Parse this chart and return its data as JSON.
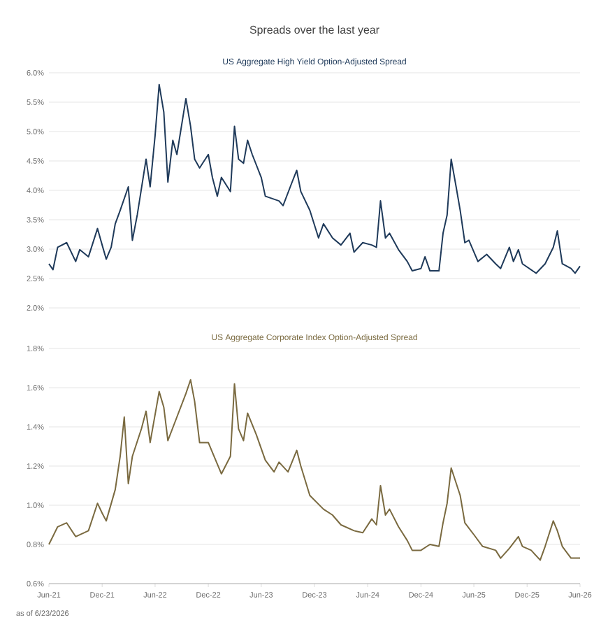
{
  "chart_data": [
    {
      "type": "line",
      "title": "Spreads over the last year",
      "subtitle": "US Aggregate High Yield Option-Adjusted Spread",
      "color": "#1f3a5a",
      "grid": "y",
      "tick_labels": "y",
      "x": [
        "2021-06-01",
        "2021-06-15",
        "2021-07-01",
        "2021-08-01",
        "2021-09-01",
        "2021-09-15",
        "2021-10-15",
        "2021-11-15",
        "2021-12-01",
        "2021-12-15",
        "2022-01-01",
        "2022-01-15",
        "2022-02-01",
        "2022-03-01",
        "2022-03-15",
        "2022-04-01",
        "2022-05-01",
        "2022-05-15",
        "2022-06-01",
        "2022-06-15",
        "2022-07-01",
        "2022-07-15",
        "2022-08-01",
        "2022-08-15",
        "2022-09-15",
        "2022-10-01",
        "2022-10-15",
        "2022-11-01",
        "2022-12-01",
        "2022-12-15",
        "2023-01-01",
        "2023-01-15",
        "2023-02-15",
        "2023-03-01",
        "2023-03-15",
        "2023-04-01",
        "2023-04-15",
        "2023-05-01",
        "2023-06-01",
        "2023-06-15",
        "2023-08-01",
        "2023-08-15",
        "2023-09-15",
        "2023-10-01",
        "2023-10-15",
        "2023-11-15",
        "2023-12-15",
        "2024-01-01",
        "2024-02-01",
        "2024-03-01",
        "2024-04-01",
        "2024-04-15",
        "2024-05-15",
        "2024-06-15",
        "2024-07-01",
        "2024-07-15",
        "2024-08-01",
        "2024-08-15",
        "2024-09-15",
        "2024-10-15",
        "2024-11-01",
        "2024-12-01",
        "2024-12-15",
        "2025-01-01",
        "2025-02-01",
        "2025-02-15",
        "2025-03-01",
        "2025-03-15",
        "2025-04-01",
        "2025-04-15",
        "2025-05-01",
        "2025-05-15",
        "2025-06-15",
        "2025-07-15",
        "2025-08-15",
        "2025-09-01",
        "2025-10-01",
        "2025-10-15",
        "2025-11-01",
        "2025-11-15",
        "2026-01-01",
        "2026-02-01",
        "2026-03-01",
        "2026-03-15",
        "2026-04-01",
        "2026-05-01",
        "2026-05-15",
        "2026-06-01"
      ],
      "values": [
        2.75,
        2.65,
        3.03,
        3.11,
        2.79,
        2.99,
        2.87,
        3.35,
        3.07,
        2.83,
        3.03,
        3.43,
        3.66,
        4.06,
        3.15,
        3.59,
        4.53,
        4.06,
        4.93,
        5.8,
        5.33,
        4.14,
        4.85,
        4.61,
        5.56,
        5.09,
        4.53,
        4.38,
        4.61,
        4.22,
        3.9,
        4.22,
        3.98,
        5.09,
        4.53,
        4.46,
        4.85,
        4.61,
        4.22,
        3.9,
        3.82,
        3.74,
        4.14,
        4.34,
        3.98,
        3.66,
        3.19,
        3.43,
        3.19,
        3.07,
        3.27,
        2.95,
        3.11,
        3.07,
        3.03,
        3.82,
        3.19,
        3.27,
        2.99,
        2.79,
        2.63,
        2.67,
        2.87,
        2.63,
        2.63,
        3.27,
        3.58,
        4.53,
        4.06,
        3.66,
        3.11,
        3.15,
        2.79,
        2.91,
        2.75,
        2.67,
        3.03,
        2.79,
        2.99,
        2.75,
        2.59,
        2.75,
        3.03,
        3.31,
        2.75,
        2.67,
        2.59,
        2.71
      ],
      "xlim": [
        "2021-06-01",
        "2026-06-01"
      ],
      "ylim": [
        2,
        6
      ],
      "yticks": [
        {
          "value": 2,
          "label": "2.0%"
        },
        {
          "value": 2.5,
          "label": "2.5%"
        },
        {
          "value": 3,
          "label": "3.0%"
        },
        {
          "value": 3.5,
          "label": "3.5%"
        },
        {
          "value": 4,
          "label": "4.0%"
        },
        {
          "value": 4.5,
          "label": "4.5%"
        },
        {
          "value": 5,
          "label": "5.0%"
        },
        {
          "value": 5.5,
          "label": "5.5%"
        },
        {
          "value": 6,
          "label": "6.0%"
        }
      ]
    },
    {
      "type": "line",
      "subtitle": "US Aggregate Corporate Index Option-Adjusted Spread",
      "color": "#7a6a40",
      "grid": "y",
      "annotations": [
        "as of 6/23/2026"
      ],
      "x": [
        "2021-06-01",
        "2021-07-01",
        "2021-08-01",
        "2021-09-01",
        "2021-10-01",
        "2021-10-15",
        "2021-11-15",
        "2021-12-01",
        "2021-12-15",
        "2022-01-15",
        "2022-02-01",
        "2022-02-15",
        "2022-03-01",
        "2022-03-15",
        "2022-04-15",
        "2022-05-01",
        "2022-05-15",
        "2022-06-15",
        "2022-07-01",
        "2022-07-15",
        "2022-08-15",
        "2022-09-15",
        "2022-10-01",
        "2022-10-15",
        "2022-11-01",
        "2022-12-01",
        "2022-12-15",
        "2023-01-15",
        "2023-02-15",
        "2023-03-01",
        "2023-03-15",
        "2023-04-01",
        "2023-04-15",
        "2023-05-15",
        "2023-06-15",
        "2023-07-15",
        "2023-08-01",
        "2023-09-01",
        "2023-10-01",
        "2023-10-15",
        "2023-11-15",
        "2024-01-01",
        "2024-02-01",
        "2024-03-01",
        "2024-04-15",
        "2024-05-15",
        "2024-06-15",
        "2024-07-01",
        "2024-07-15",
        "2024-08-01",
        "2024-08-15",
        "2024-09-15",
        "2024-10-15",
        "2024-11-01",
        "2024-12-01",
        "2025-01-01",
        "2025-02-01",
        "2025-02-15",
        "2025-03-01",
        "2025-03-15",
        "2025-04-15",
        "2025-05-01",
        "2025-06-01",
        "2025-07-01",
        "2025-08-15",
        "2025-09-01",
        "2025-10-01",
        "2025-11-01",
        "2025-11-15",
        "2025-12-15",
        "2026-01-15",
        "2026-02-01",
        "2026-03-01",
        "2026-03-15",
        "2026-04-01",
        "2026-05-01",
        "2026-06-01"
      ],
      "values": [
        0.8,
        0.89,
        0.91,
        0.84,
        0.86,
        0.87,
        1.01,
        0.96,
        0.92,
        1.08,
        1.25,
        1.45,
        1.11,
        1.25,
        1.39,
        1.48,
        1.32,
        1.58,
        1.5,
        1.33,
        1.45,
        1.57,
        1.64,
        1.53,
        1.32,
        1.32,
        1.27,
        1.16,
        1.25,
        1.62,
        1.39,
        1.33,
        1.47,
        1.36,
        1.23,
        1.17,
        1.22,
        1.17,
        1.28,
        1.2,
        1.05,
        0.98,
        0.95,
        0.9,
        0.87,
        0.86,
        0.93,
        0.9,
        1.1,
        0.95,
        0.98,
        0.89,
        0.82,
        0.77,
        0.77,
        0.8,
        0.79,
        0.91,
        1.01,
        1.19,
        1.05,
        0.91,
        0.85,
        0.79,
        0.77,
        0.73,
        0.78,
        0.84,
        0.79,
        0.77,
        0.72,
        0.79,
        0.92,
        0.87,
        0.79,
        0.73,
        0.73
      ],
      "xlim": [
        "2021-06-01",
        "2026-06-01"
      ],
      "xticks": [
        {
          "value": "2021-06-01",
          "label": "Jun-21"
        },
        {
          "value": "2021-12-01",
          "label": "Dec-21"
        },
        {
          "value": "2022-06-01",
          "label": "Jun-22"
        },
        {
          "value": "2022-12-01",
          "label": "Dec-22"
        },
        {
          "value": "2023-06-01",
          "label": "Jun-23"
        },
        {
          "value": "2023-12-01",
          "label": "Dec-23"
        },
        {
          "value": "2024-06-01",
          "label": "Jun-24"
        },
        {
          "value": "2024-12-01",
          "label": "Dec-24"
        },
        {
          "value": "2025-06-01",
          "label": "Jun-25"
        },
        {
          "value": "2025-12-01",
          "label": "Dec-25"
        },
        {
          "value": "2026-06-01",
          "label": "Jun-26"
        }
      ],
      "ylim": [
        0.6,
        1.8
      ],
      "yticks": [
        {
          "value": 0.6,
          "label": "0.6%"
        },
        {
          "value": 0.8,
          "label": "0.8%"
        },
        {
          "value": 1.0,
          "label": "1.0%"
        },
        {
          "value": 1.2,
          "label": "1.2%"
        },
        {
          "value": 1.4,
          "label": "1.4%"
        },
        {
          "value": 1.6,
          "label": "1.6%"
        },
        {
          "value": 1.8,
          "label": "1.8%"
        }
      ]
    }
  ]
}
